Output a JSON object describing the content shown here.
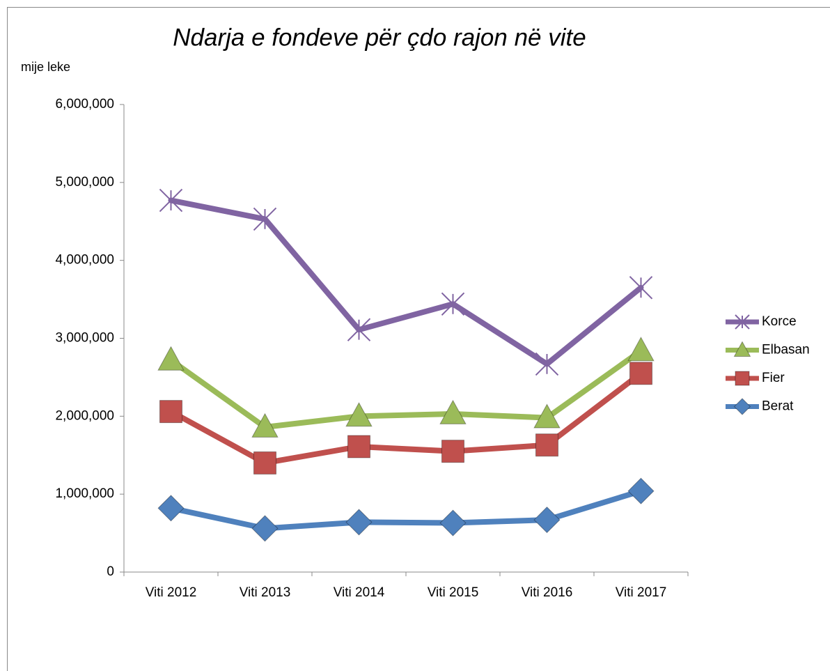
{
  "chart_data": {
    "type": "line",
    "title": "Ndarja e fondeve për çdo rajon në vite",
    "y_label": "mije leke",
    "categories": [
      "Viti 2012",
      "Viti 2013",
      "Viti 2014",
      "Viti 2015",
      "Viti 2016",
      "Viti 2017"
    ],
    "series": [
      {
        "name": "Korce",
        "color": "#8064a2",
        "marker": "x",
        "values": [
          4770000,
          4530000,
          3110000,
          3440000,
          2670000,
          3650000
        ]
      },
      {
        "name": "Elbasan",
        "color": "#9bbb59",
        "marker": "triangle",
        "values": [
          2720000,
          1860000,
          2000000,
          2030000,
          1980000,
          2840000
        ]
      },
      {
        "name": "Fier",
        "color": "#c0504d",
        "marker": "square",
        "values": [
          2060000,
          1400000,
          1610000,
          1550000,
          1630000,
          2550000
        ]
      },
      {
        "name": "Berat",
        "color": "#4f81bd",
        "marker": "diamond",
        "values": [
          820000,
          560000,
          640000,
          630000,
          670000,
          1040000
        ]
      }
    ],
    "ylim": [
      0,
      6000000
    ],
    "yticks": [
      0,
      {
        "value": 1000000,
        "label": "1,000,000"
      },
      {
        "value": 2000000,
        "label": "2,000,000"
      },
      {
        "value": 3000000,
        "label": "3,000,000"
      },
      {
        "value": 4000000,
        "label": "4,000,000"
      },
      {
        "value": 5000000,
        "label": "5,000,000"
      },
      {
        "value": 6000000,
        "label": "6,000,000"
      }
    ],
    "grid": false,
    "legend": "right"
  }
}
